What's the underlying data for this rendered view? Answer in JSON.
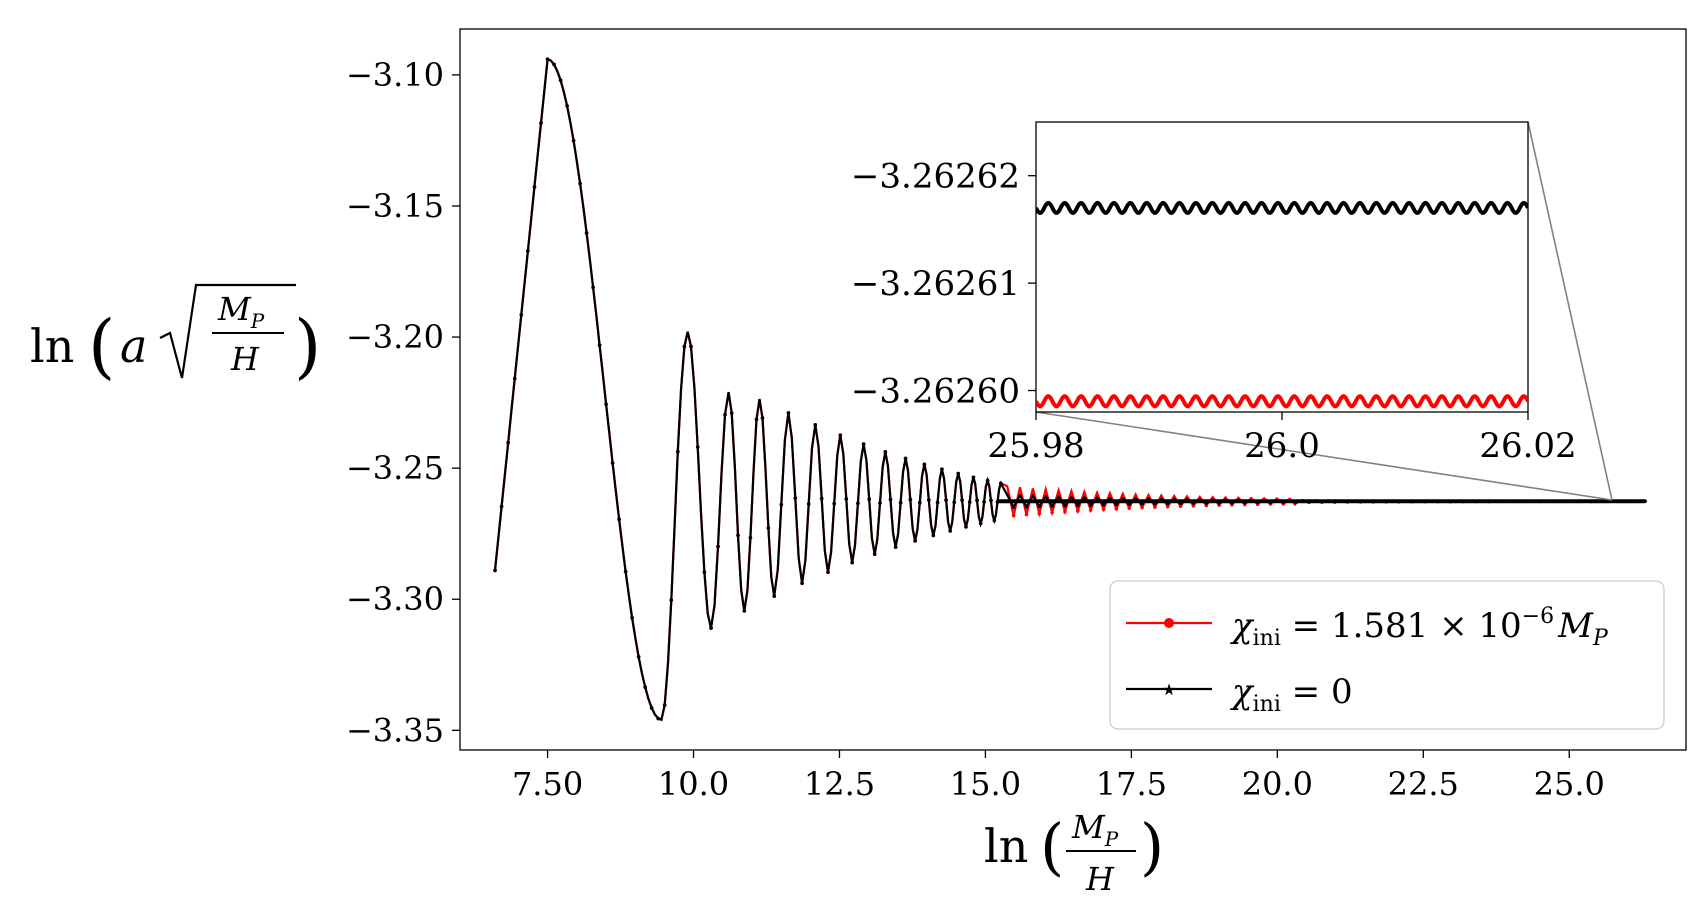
{
  "chart_data": {
    "type": "line",
    "xlabel": "ln (M_P / H)",
    "ylabel": "ln (a √(M_P / H))",
    "xlim": [
      6.0,
      27.0
    ],
    "ylim": [
      -3.3575,
      -3.0825
    ],
    "xticks": [
      {
        "value": 7.5,
        "label": "7.50"
      },
      {
        "value": 10.0,
        "label": "10.0"
      },
      {
        "value": 12.5,
        "label": "12.5"
      },
      {
        "value": 15.0,
        "label": "15.0"
      },
      {
        "value": 17.5,
        "label": "17.5"
      },
      {
        "value": 20.0,
        "label": "20.0"
      },
      {
        "value": 22.5,
        "label": "22.5"
      },
      {
        "value": 25.0,
        "label": "25.0"
      }
    ],
    "yticks": [
      {
        "value": -3.1,
        "label": "−3.10"
      },
      {
        "value": -3.15,
        "label": "−3.15"
      },
      {
        "value": -3.2,
        "label": "−3.20"
      },
      {
        "value": -3.25,
        "label": "−3.25"
      },
      {
        "value": -3.3,
        "label": "−3.30"
      },
      {
        "value": -3.35,
        "label": "−3.35"
      }
    ],
    "series": [
      {
        "name": "χ_ini = 1.581 × 10^−6 M_P",
        "color": "#ff0000",
        "marker": "circle",
        "x_start": 6.6,
        "x_end": 20.3,
        "final_value": -3.262599
      },
      {
        "name": "χ_ini = 0",
        "color": "#000000",
        "marker": "star",
        "x_start": 6.6,
        "x_end": 26.3,
        "final_value": -3.262617
      }
    ],
    "early_extrema": [
      {
        "x": 6.6,
        "y": -3.289
      },
      {
        "x": 7.5,
        "y": -3.094
      },
      {
        "x": 9.45,
        "y": -3.346
      },
      {
        "x": 9.9,
        "y": -3.198
      },
      {
        "x": 10.3,
        "y": -3.311
      },
      {
        "x": 10.6,
        "y": -3.221
      }
    ],
    "inset": {
      "xlim": [
        25.98,
        26.02
      ],
      "ylim": [
        -3.262598,
        -3.262625
      ],
      "xticks": [
        {
          "value": 25.98,
          "label": "25.98"
        },
        {
          "value": 26.0,
          "label": "26.0"
        },
        {
          "value": 26.02,
          "label": "26.02"
        }
      ],
      "yticks": [
        {
          "value": -3.26262,
          "label": "−3.26262"
        },
        {
          "value": -3.26261,
          "label": "−3.26261"
        },
        {
          "value": -3.2626,
          "label": "−3.26260"
        }
      ],
      "black_level": -3.262617,
      "red_level": -3.262599,
      "oscillation_cycles": 30
    },
    "legend": {
      "location": "lower-right",
      "entries": [
        {
          "prefix": "χ",
          "sub": "ini",
          "text": " = 1.581 × 10",
          "sup": "−6",
          "suffix": "M",
          "suffix_sub": "P"
        },
        {
          "prefix": "χ",
          "sub": "ini",
          "text": " = 0"
        }
      ]
    }
  },
  "labels": {
    "x_ln": "ln",
    "x_num": "M",
    "x_num_sub": "P",
    "x_den": "H",
    "y_ln": "ln",
    "y_a": "a",
    "y_num": "M",
    "y_num_sub": "P",
    "y_den": "H"
  }
}
